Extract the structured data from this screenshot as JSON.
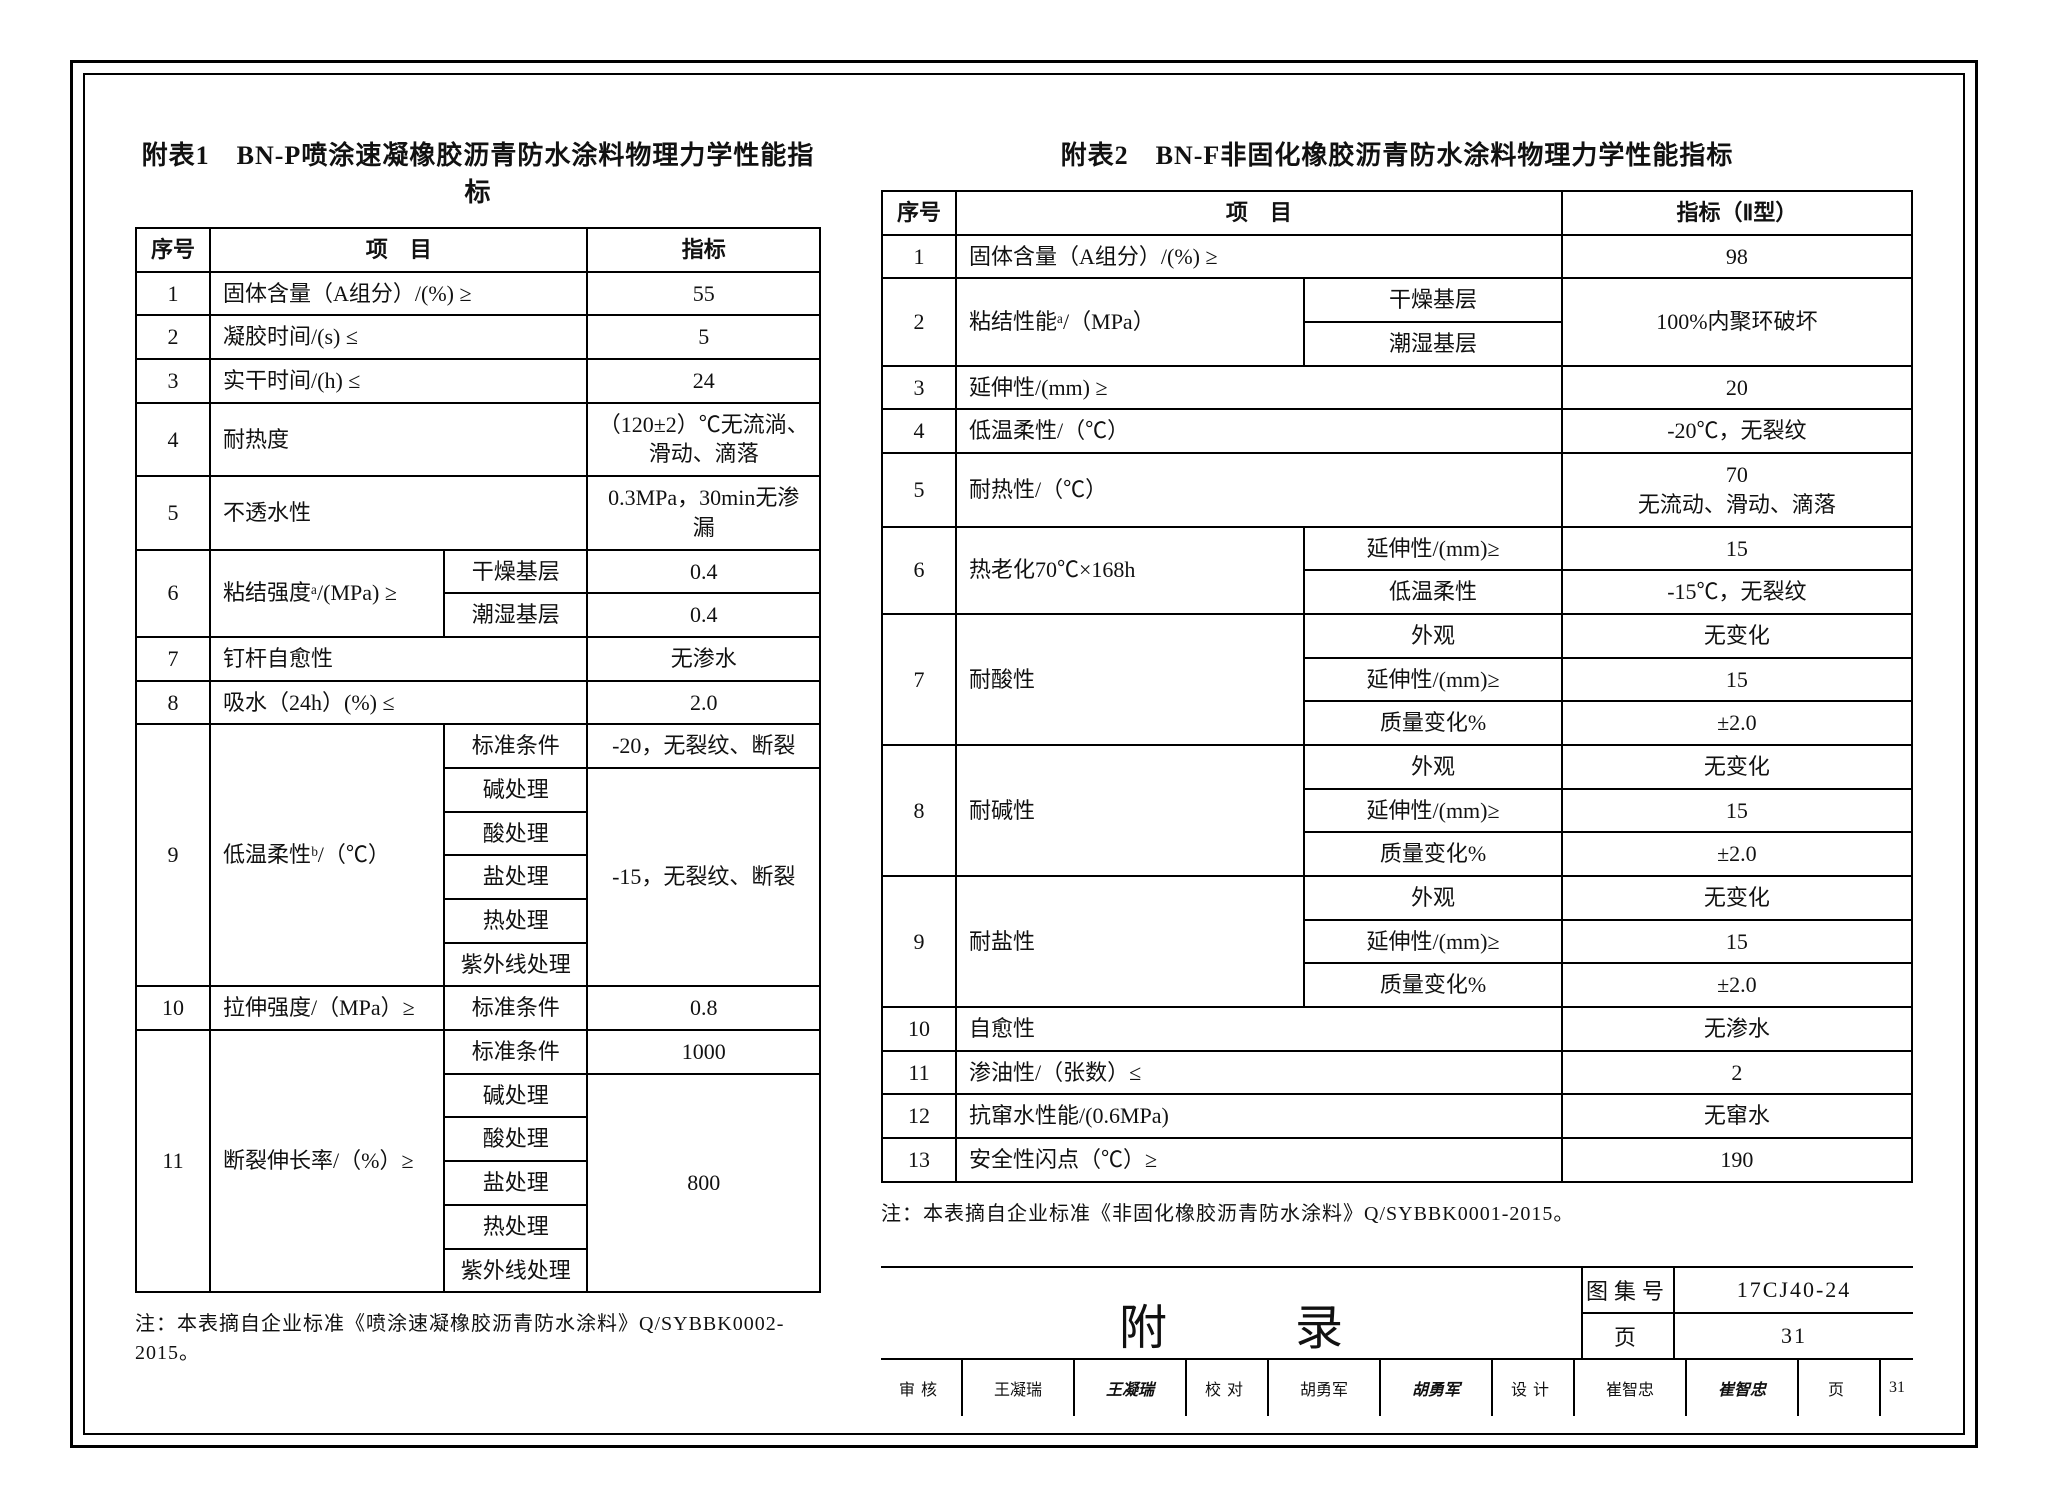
{
  "table1": {
    "title": "附表1　BN-P喷涂速凝橡胶沥青防水涂料物理力学性能指标",
    "head": {
      "seq": "序号",
      "item": "项　目",
      "sub": "",
      "spec": "指标"
    },
    "rows": [
      {
        "seq": "1",
        "item": "固体含量（A组分）/(%) ≥",
        "sub": "",
        "spec": "55"
      },
      {
        "seq": "2",
        "item": "凝胶时间/(s) ≤",
        "sub": "",
        "spec": "5"
      },
      {
        "seq": "3",
        "item": "实干时间/(h) ≤",
        "sub": "",
        "spec": "24"
      },
      {
        "seq": "4",
        "item": "耐热度",
        "sub": "",
        "spec": "（120±2）℃无流淌、滑动、滴落"
      },
      {
        "seq": "5",
        "item": "不透水性",
        "sub": "",
        "spec": "0.3MPa，30min无渗漏"
      },
      {
        "seq": "6",
        "item": "粘结强度ᵃ/(MPa) ≥",
        "subs": [
          {
            "sub": "干燥基层",
            "spec": "0.4"
          },
          {
            "sub": "潮湿基层",
            "spec": "0.4"
          }
        ]
      },
      {
        "seq": "7",
        "item": "钉杆自愈性",
        "sub": "",
        "spec": "无渗水"
      },
      {
        "seq": "8",
        "item": "吸水（24h）(%) ≤",
        "sub": "",
        "spec": "2.0"
      },
      {
        "seq": "9",
        "item": "低温柔性ᵇ/（℃）",
        "subs": [
          {
            "sub": "标准条件",
            "spec": "-20，无裂纹、断裂"
          },
          {
            "sub": "碱处理",
            "spec": "-15，无裂纹、断裂",
            "merge": 5
          },
          {
            "sub": "酸处理"
          },
          {
            "sub": "盐处理"
          },
          {
            "sub": "热处理"
          },
          {
            "sub": "紫外线处理"
          }
        ]
      },
      {
        "seq": "10",
        "item": "拉伸强度/（MPa）≥",
        "sub": "标准条件",
        "spec": "0.8"
      },
      {
        "seq": "11",
        "item": "断裂伸长率/（%）≥",
        "subs": [
          {
            "sub": "标准条件",
            "spec": "1000"
          },
          {
            "sub": "碱处理",
            "spec": "800",
            "merge": 5
          },
          {
            "sub": "酸处理"
          },
          {
            "sub": "盐处理"
          },
          {
            "sub": "热处理"
          },
          {
            "sub": "紫外线处理"
          }
        ]
      }
    ],
    "note": "注：本表摘自企业标准《喷涂速凝橡胶沥青防水涂料》Q/SYBBK0002-2015。"
  },
  "table2": {
    "title": "附表2　BN-F非固化橡胶沥青防水涂料物理力学性能指标",
    "head": {
      "seq": "序号",
      "item": "项　目",
      "sub": "",
      "spec": "指标（Ⅱ型）"
    },
    "rows": [
      {
        "seq": "1",
        "item": "固体含量（A组分）/(%) ≥",
        "sub": "",
        "spec": "98"
      },
      {
        "seq": "2",
        "item": "粘结性能ᵃ/（MPa）",
        "subs": [
          {
            "sub": "干燥基层",
            "spec": "100%内聚环破坏",
            "merge": 2
          },
          {
            "sub": "潮湿基层"
          }
        ]
      },
      {
        "seq": "3",
        "item": "延伸性/(mm) ≥",
        "sub": "",
        "spec": "20"
      },
      {
        "seq": "4",
        "item": "低温柔性/（℃）",
        "sub": "",
        "spec": "-20℃，无裂纹"
      },
      {
        "seq": "5",
        "item": "耐热性/（℃）",
        "sub": "",
        "spec": "70\n无流动、滑动、滴落"
      },
      {
        "seq": "6",
        "item": "热老化70℃×168h",
        "subs": [
          {
            "sub": "延伸性/(mm)≥",
            "spec": "15"
          },
          {
            "sub": "低温柔性",
            "spec": "-15℃，无裂纹"
          }
        ]
      },
      {
        "seq": "7",
        "item": "耐酸性",
        "subs": [
          {
            "sub": "外观",
            "spec": "无变化"
          },
          {
            "sub": "延伸性/(mm)≥",
            "spec": "15"
          },
          {
            "sub": "质量变化%",
            "spec": "±2.0"
          }
        ]
      },
      {
        "seq": "8",
        "item": "耐碱性",
        "subs": [
          {
            "sub": "外观",
            "spec": "无变化"
          },
          {
            "sub": "延伸性/(mm)≥",
            "spec": "15"
          },
          {
            "sub": "质量变化%",
            "spec": "±2.0"
          }
        ]
      },
      {
        "seq": "9",
        "item": "耐盐性",
        "subs": [
          {
            "sub": "外观",
            "spec": "无变化"
          },
          {
            "sub": "延伸性/(mm)≥",
            "spec": "15"
          },
          {
            "sub": "质量变化%",
            "spec": "±2.0"
          }
        ]
      },
      {
        "seq": "10",
        "item": "自愈性",
        "sub": "",
        "spec": "无渗水"
      },
      {
        "seq": "11",
        "item": "渗油性/（张数）≤",
        "sub": "",
        "spec": "2"
      },
      {
        "seq": "12",
        "item": "抗窜水性能/(0.6MPa)",
        "sub": "",
        "spec": "无窜水"
      },
      {
        "seq": "13",
        "item": "安全性闪点（℃）≥",
        "sub": "",
        "spec": "190"
      }
    ],
    "note": "注：本表摘自企业标准《非固化橡胶沥青防水涂料》Q/SYBBK0001-2015。"
  },
  "titleblock": {
    "title": "附　录",
    "albumLabel": "图集号",
    "album": "17CJ40-24",
    "pageLabel": "页",
    "page": "31",
    "sig": [
      {
        "lab": "审核",
        "name": "王凝瑞",
        "sign": "王凝瑞"
      },
      {
        "lab": "校对",
        "name": "胡勇军",
        "sign": "胡勇军"
      },
      {
        "lab": "设计",
        "name": "崔智忠",
        "sign": "崔智忠"
      }
    ]
  }
}
